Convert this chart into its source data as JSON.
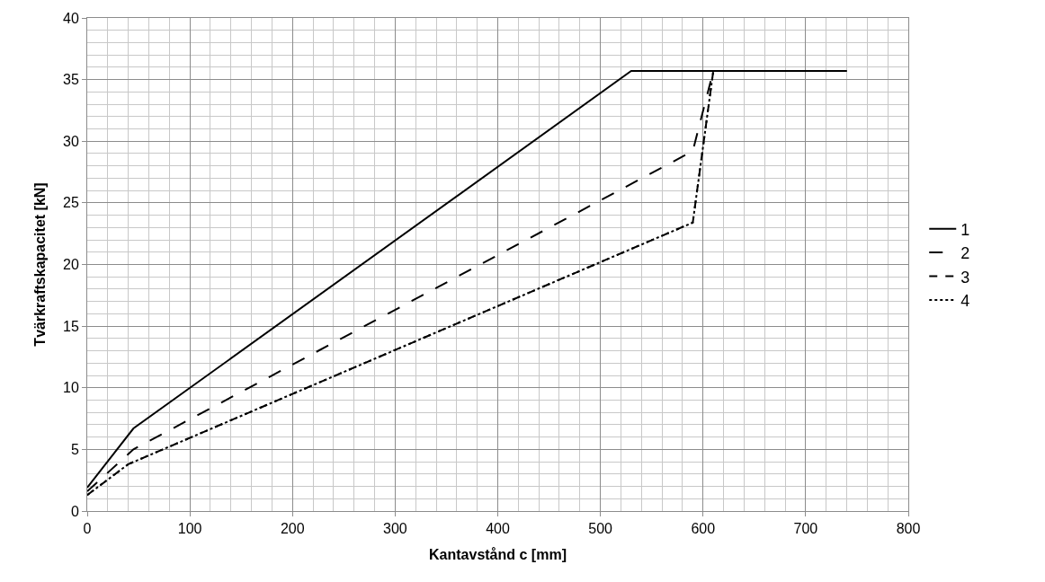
{
  "chart_data": {
    "type": "line",
    "xlabel": "Kantavstånd c [mm]",
    "ylabel": "Tvärkraftskapacitet [kN]",
    "xlim": [
      0,
      800
    ],
    "xticks": [
      0,
      100,
      200,
      300,
      400,
      500,
      600,
      700,
      800
    ],
    "ylim": [
      0,
      40
    ],
    "yticks": [
      0,
      5,
      10,
      15,
      20,
      25,
      30,
      35,
      40
    ],
    "grid": true,
    "legend": "right",
    "marker": "none",
    "series": [
      {
        "name": "1",
        "color": "#000000",
        "line_style": "solid",
        "x": [
          0,
          45,
          530,
          740
        ],
        "values": [
          1.9,
          6.7,
          35.7,
          35.7
        ]
      },
      {
        "name": "2",
        "color": "#000000",
        "line_style": "dashed",
        "x": [
          0,
          45,
          590,
          610,
          740
        ],
        "values": [
          1.6,
          5.0,
          29.2,
          35.7,
          35.7
        ]
      },
      {
        "name": "3",
        "color": "#000000",
        "line_style": "dashed",
        "x": [
          0,
          40,
          590,
          610,
          740
        ],
        "values": [
          1.3,
          3.8,
          23.4,
          35.7,
          35.7
        ]
      },
      {
        "name": "4",
        "color": "#000000",
        "line_style": "dotted",
        "x": [
          0,
          40,
          590,
          610,
          740
        ],
        "values": [
          1.3,
          3.8,
          23.4,
          35.7,
          35.7
        ]
      }
    ]
  }
}
